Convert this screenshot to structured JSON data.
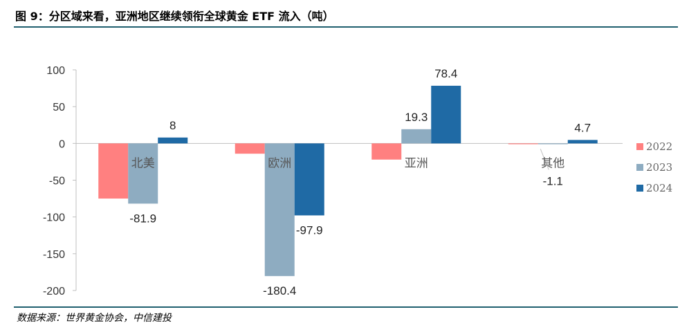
{
  "title": "图 9：分区域来看，亚洲地区继续领衔全球黄金 ETF 流入（吨）",
  "source": "数据来源：世界黄金协会，中信建投",
  "chart_data": {
    "type": "bar",
    "categories": [
      "北美",
      "欧洲",
      "亚洲",
      "其他"
    ],
    "series": [
      {
        "name": "2022",
        "values": [
          -75,
          -14,
          -22,
          -0.5
        ],
        "color": "#ff8080",
        "labels": [
          null,
          null,
          null,
          null
        ]
      },
      {
        "name": "2023",
        "values": [
          -81.9,
          -180.4,
          19.3,
          -1.1
        ],
        "color": "#8eacc1",
        "labels": [
          "-81.9",
          "-180.4",
          "19.3",
          "-1.1"
        ]
      },
      {
        "name": "2024",
        "values": [
          8,
          -97.9,
          78.4,
          4.7
        ],
        "color": "#1f6aa5",
        "labels": [
          "8",
          "-97.9",
          "78.4",
          "4.7"
        ]
      }
    ],
    "yticks": [
      100,
      50,
      0,
      -50,
      -100,
      -150,
      -200
    ],
    "ylim": [
      -200,
      100
    ],
    "legend_position": "right",
    "grid": false
  }
}
